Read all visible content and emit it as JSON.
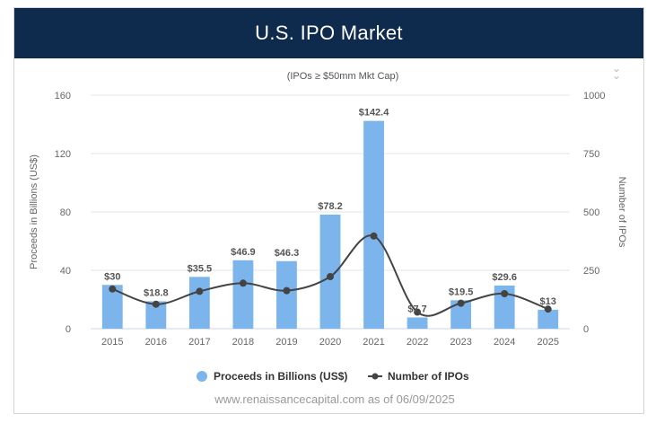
{
  "header": {
    "title": "U.S. IPO Market"
  },
  "icons": {
    "menu": "double-chevron-down-icon"
  },
  "colors": {
    "header_bg": "#0e2a4d",
    "bar": "#7cb5ec",
    "line": "#444444",
    "grid": "#e6e6e6"
  },
  "chart_data": {
    "type": "bar",
    "subtitle": "(IPOs ≥ $50mm Mkt Cap)",
    "categories": [
      "2015",
      "2016",
      "2017",
      "2018",
      "2019",
      "2020",
      "2021",
      "2022",
      "2023",
      "2024",
      "2025"
    ],
    "series": [
      {
        "name": "Proceeds in Billions (US$)",
        "type": "bar",
        "axis": "left",
        "values": [
          30,
          18.8,
          35.5,
          46.9,
          46.3,
          78.2,
          142.4,
          7.7,
          19.5,
          29.6,
          13
        ],
        "labels": [
          "$30",
          "$18.8",
          "$35.5",
          "$46.9",
          "$46.3",
          "$78.2",
          "$142.4",
          "$7.7",
          "$19.5",
          "$29.6",
          "$13"
        ]
      },
      {
        "name": "Number of IPOs",
        "type": "line",
        "axis": "right",
        "values": [
          170,
          105,
          160,
          195,
          163,
          223,
          397,
          71,
          109,
          150,
          84
        ]
      }
    ],
    "ylabel_left": "Proceeds in Billions (US$)",
    "ylabel_right": "Number of IPOs",
    "ylim_left": [
      0,
      160
    ],
    "ylim_right": [
      0,
      1000
    ],
    "yticks_left": [
      "0",
      "40",
      "80",
      "120",
      "160"
    ],
    "yticks_right": [
      "0",
      "250",
      "500",
      "750",
      "1000"
    ],
    "grid": true,
    "legend": "bottom-center",
    "source_note": "www.renaissancecapital.com as of 06/09/2025"
  }
}
